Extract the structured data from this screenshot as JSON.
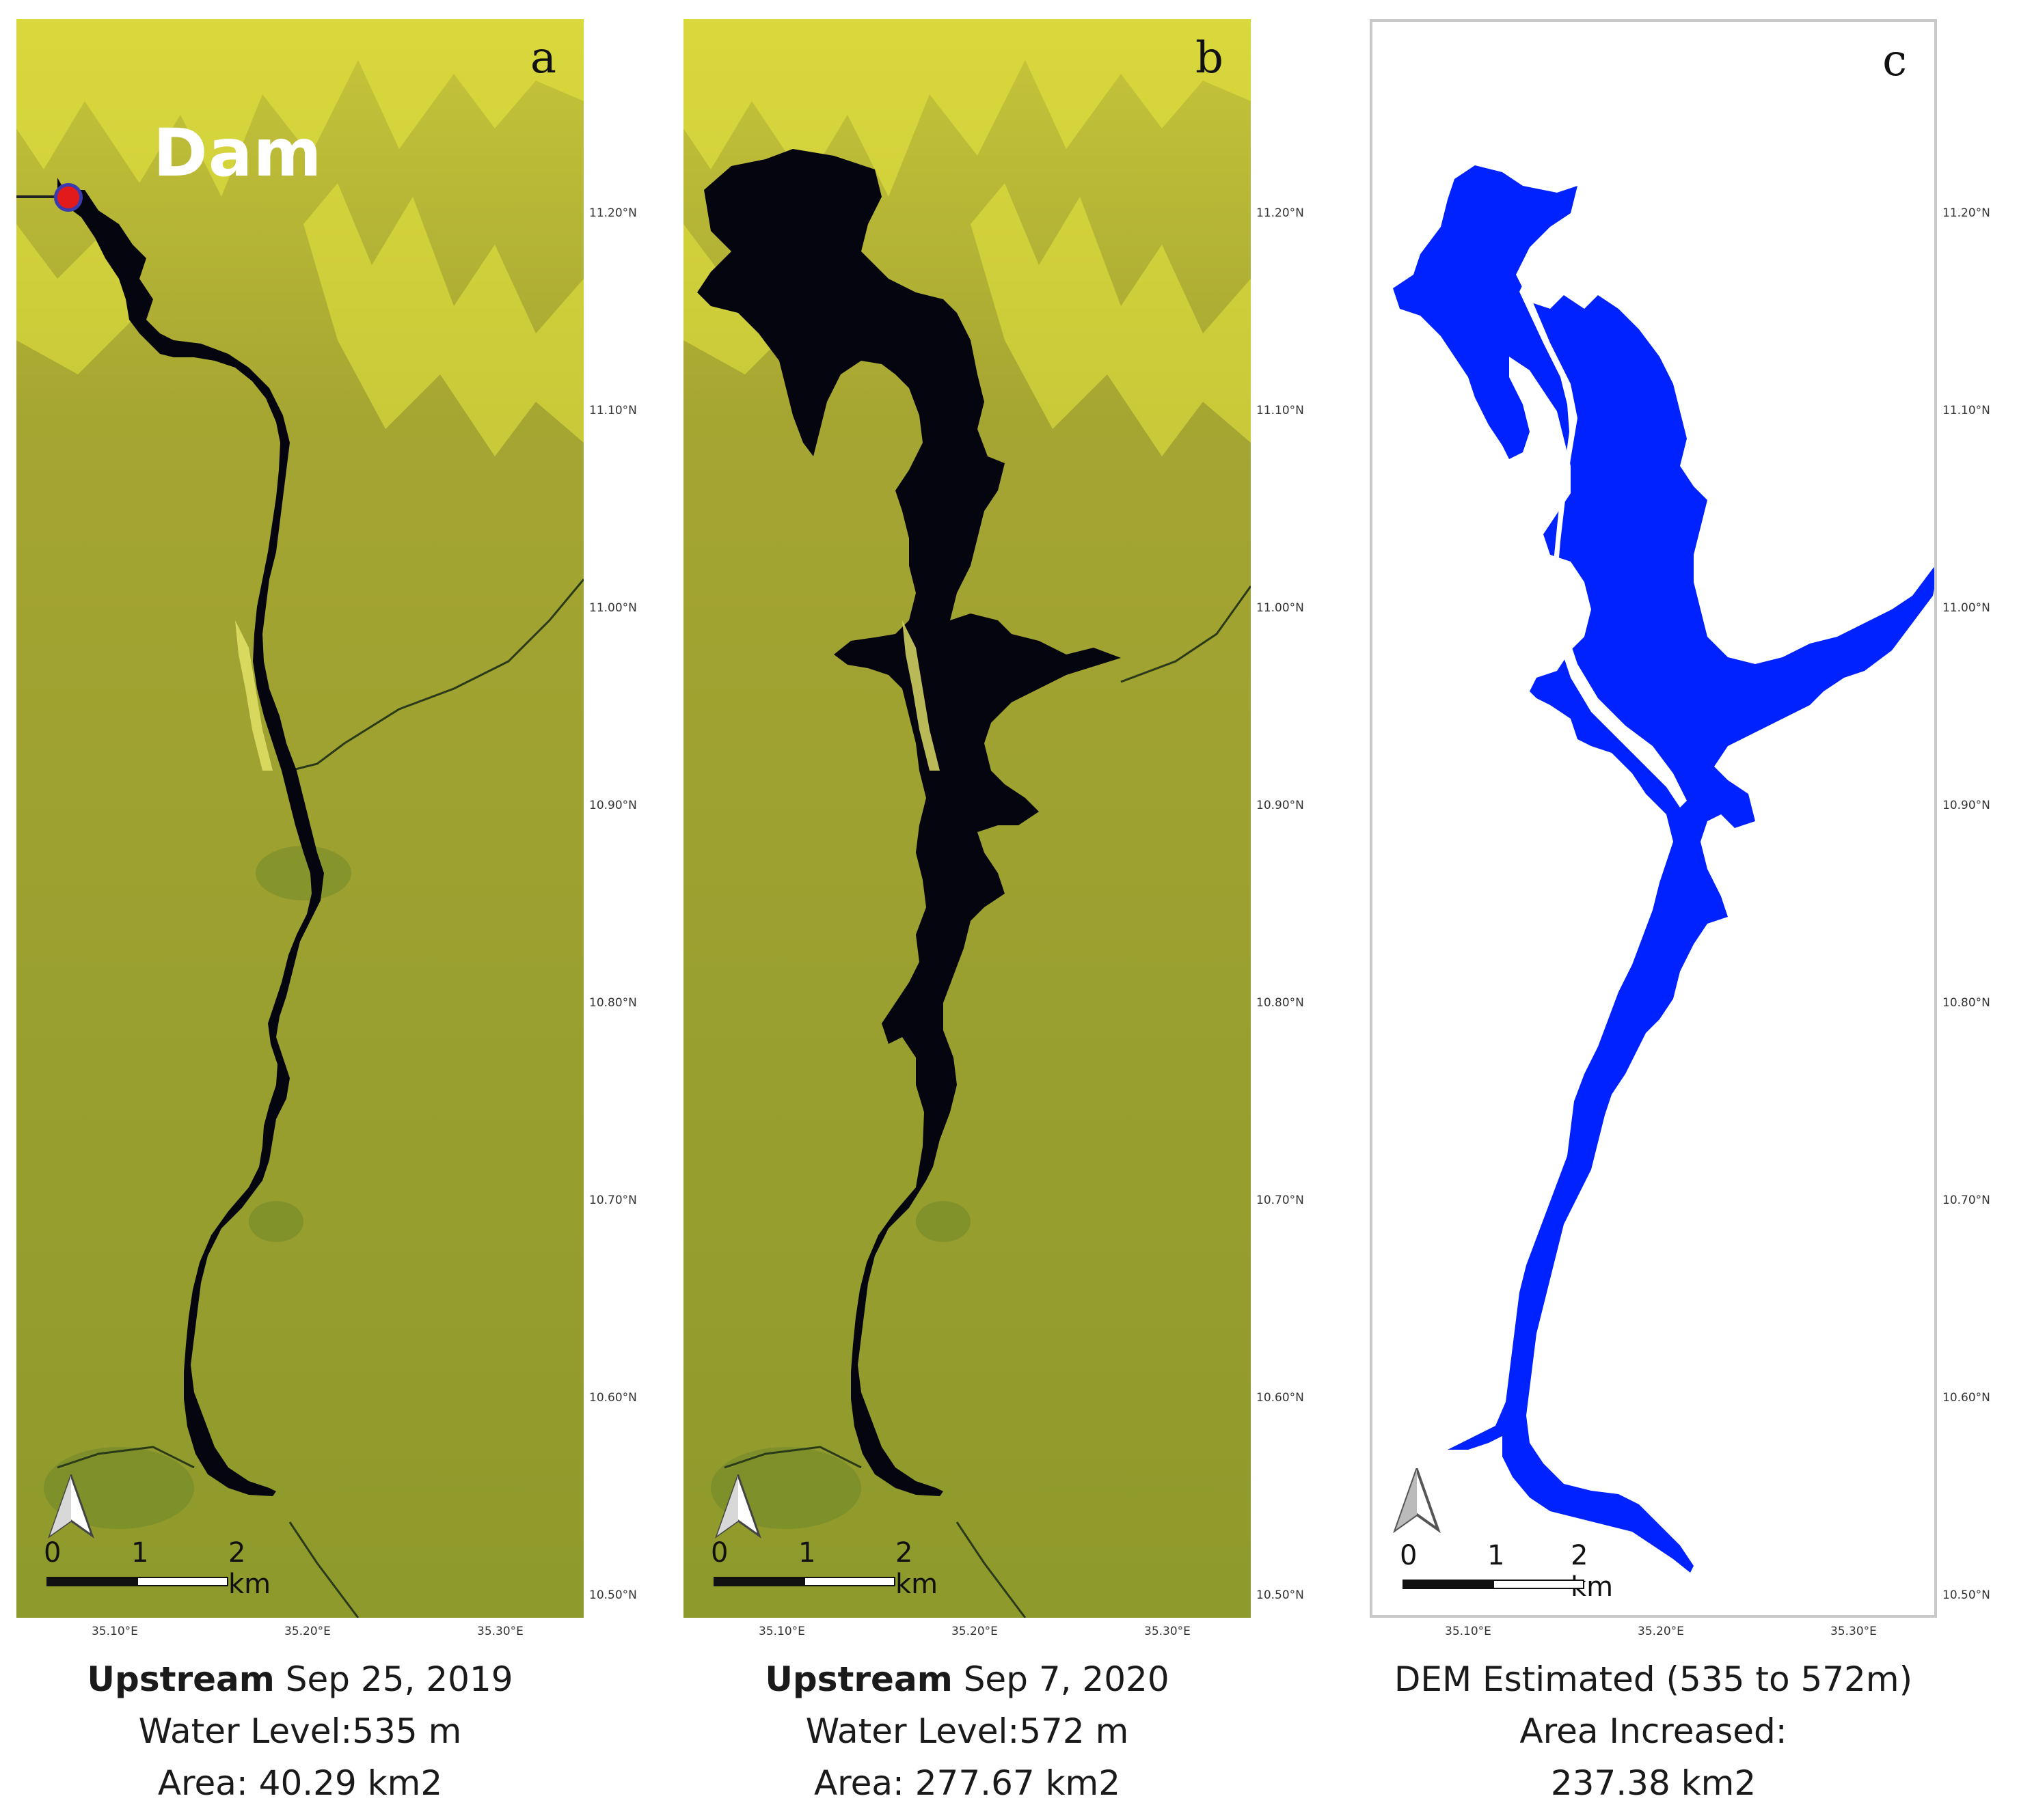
{
  "panels": [
    {
      "letter": "a",
      "dam_label": "Dam",
      "caption_bold": "Upstream",
      "caption_date": " Sep 25, 2019",
      "caption_line2": "Water Level:535 m",
      "caption_line3": "Area: 40.29 km2"
    },
    {
      "letter": "b",
      "caption_bold": "Upstream",
      "caption_date": " Sep 7, 2020",
      "caption_line2": "Water Level:572 m",
      "caption_line3": "Area: 277.67 km2"
    },
    {
      "letter": "c",
      "caption_line1": "DEM Estimated (535 to 572m)",
      "caption_line2": "Area Increased:",
      "caption_line3": "237.38 km2"
    }
  ],
  "scale_bar": {
    "tick0": "0",
    "tick1": "1",
    "tick2": "2 km"
  },
  "lat_labels": [
    "11.20°N",
    "11.10°N",
    "11.00°N",
    "10.90°N",
    "10.80°N",
    "10.70°N",
    "10.60°N",
    "10.50°N"
  ],
  "lon_labels": [
    "35.10°E",
    "35.20°E",
    "35.30°E"
  ],
  "icons": {
    "north_arrow": "north-arrow-icon",
    "dam_marker": "dam-marker-icon"
  },
  "colors": {
    "water_sar": "#050510",
    "water_dem": "#0022ff",
    "land": "#9a9a2c",
    "dam_marker": "#e31a1c"
  }
}
